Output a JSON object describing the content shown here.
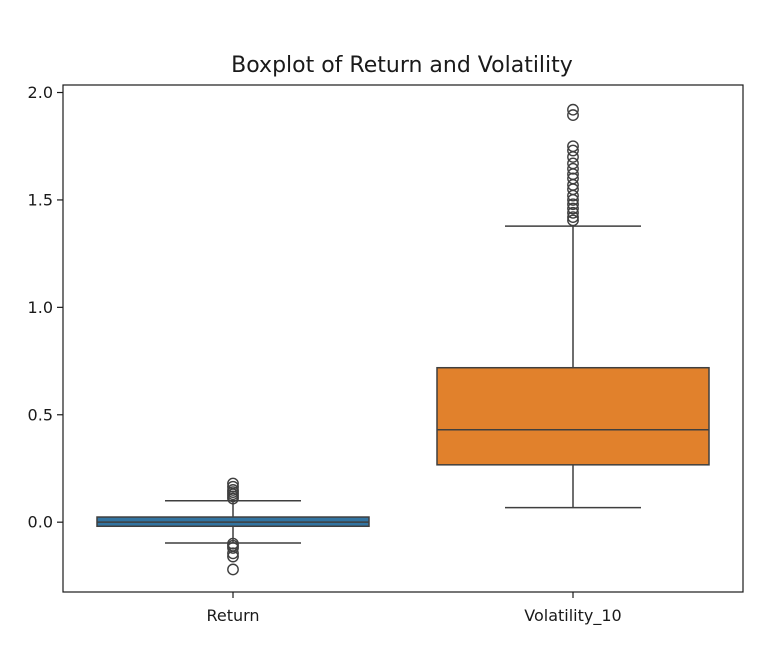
{
  "chart_data": {
    "type": "box",
    "title": "Boxplot of Return and Volatility",
    "xlabel": "",
    "ylabel": "",
    "ylim": [
      -0.325,
      2.035
    ],
    "yticks": [
      0.0,
      0.5,
      1.0,
      1.5,
      2.0
    ],
    "ytick_labels": [
      "0.0",
      "0.5",
      "1.0",
      "1.5",
      "2.0"
    ],
    "grid": false,
    "categories": [
      "Return",
      "Volatility_10"
    ],
    "series": [
      {
        "category": "Return",
        "color": "#3274a1",
        "whisker_low": -0.097,
        "q1": -0.019,
        "median": 0.0,
        "q3": 0.024,
        "whisker_high": 0.1,
        "outliers": [
          0.18,
          0.165,
          0.15,
          0.14,
          0.13,
          0.12,
          0.11,
          -0.1,
          -0.11,
          -0.12,
          -0.145,
          -0.16,
          -0.22
        ]
      },
      {
        "category": "Volatility_10",
        "color": "#e1812c",
        "whisker_low": 0.068,
        "q1": 0.267,
        "median": 0.43,
        "q3": 0.719,
        "whisker_high": 1.378,
        "outliers": [
          1.92,
          1.895,
          1.75,
          1.73,
          1.7,
          1.67,
          1.645,
          1.62,
          1.6,
          1.57,
          1.55,
          1.52,
          1.5,
          1.48,
          1.46,
          1.44,
          1.42,
          1.405
        ]
      }
    ]
  }
}
